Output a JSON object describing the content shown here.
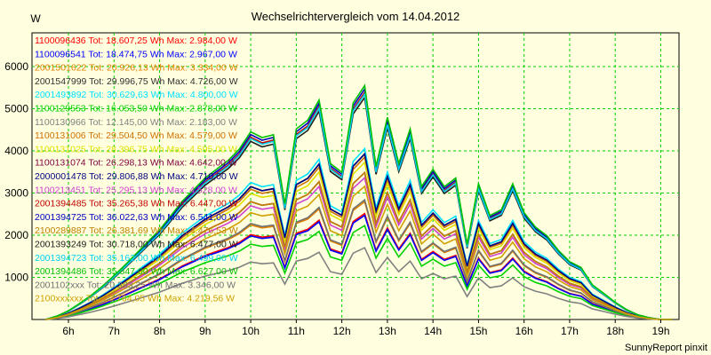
{
  "chart_data": {
    "type": "line",
    "title": "Wechselrichtervergleich vom 14.04.2012",
    "ylabel": "W",
    "xlabel": "",
    "footer": "SunnyReport pinxit",
    "ylim": [
      0,
      6800
    ],
    "xlim": [
      5.2,
      19.4
    ],
    "yticks": [
      1000,
      2000,
      3000,
      4000,
      5000,
      6000
    ],
    "xticks": [
      {
        "v": 6,
        "label": "6h"
      },
      {
        "v": 7,
        "label": "7h"
      },
      {
        "v": 8,
        "label": "8h"
      },
      {
        "v": 9,
        "label": "9h"
      },
      {
        "v": 10,
        "label": "10h"
      },
      {
        "v": 11,
        "label": "11h"
      },
      {
        "v": 12,
        "label": "12h"
      },
      {
        "v": 13,
        "label": "13h"
      },
      {
        "v": 14,
        "label": "14h"
      },
      {
        "v": 15,
        "label": "15h"
      },
      {
        "v": 16,
        "label": "16h"
      },
      {
        "v": 17,
        "label": "17h"
      },
      {
        "v": 18,
        "label": "18h"
      },
      {
        "v": 19,
        "label": "19h"
      }
    ],
    "grid": true,
    "legend_position": "top-left",
    "x": [
      5.5,
      5.75,
      6.0,
      6.25,
      6.5,
      6.75,
      7.0,
      7.25,
      7.5,
      7.75,
      8.0,
      8.25,
      8.5,
      8.75,
      9.0,
      9.25,
      9.5,
      9.75,
      10.0,
      10.25,
      10.5,
      10.75,
      11.0,
      11.25,
      11.5,
      11.75,
      12.0,
      12.25,
      12.5,
      12.75,
      13.0,
      13.25,
      13.5,
      13.75,
      14.0,
      14.25,
      14.5,
      14.75,
      15.0,
      15.25,
      15.5,
      15.75,
      16.0,
      16.25,
      16.5,
      16.75,
      17.0,
      17.25,
      17.5,
      17.75,
      18.0,
      18.25,
      18.5,
      18.75,
      19.0,
      19.25
    ],
    "series": [
      {
        "name": "1100096436",
        "legend": "1100096436 Tot: 18.607,25 Wh Max: 2.984,00 W",
        "color": "#ff0000",
        "scale": 0.62
      },
      {
        "name": "1100096541",
        "legend": "1100096541 Tot: 18.474,75 Wh Max: 2.967,00 W",
        "color": "#0000ff",
        "scale": 0.61
      },
      {
        "name": "2001501622",
        "legend": "2001501622 Tot: 20.926,13 Wh Max: 3.334,00 W",
        "color": "#e08000",
        "scale": 0.69
      },
      {
        "name": "2001547999",
        "legend": "2001547999 Tot: 29.996,75 Wh Max: 4.726,00 W",
        "color": "#303030",
        "scale": 0.97
      },
      {
        "name": "2001493892",
        "legend": "2001493892 Tot: 30.629,63 Wh Max: 4.800,00 W",
        "color": "#00e0ff",
        "scale": 1.0
      },
      {
        "name": "1100129553",
        "legend": "1100129553 Tot: 16.053,50 Wh Max: 2.878,00 W",
        "color": "#00d000",
        "scale": 0.55
      },
      {
        "name": "1100130966",
        "legend": "1100130966 Tot: 12.145,00 Wh Max: 2.183,00 W",
        "color": "#808080",
        "scale": 0.42
      },
      {
        "name": "1100131006",
        "legend": "1100131006 Tot: 29.504,50 Wh Max: 4.579,00 W",
        "color": "#d07000",
        "scale": 0.95
      },
      {
        "name": "1100131025",
        "legend": "1100131025 Tot: 28.396,75 Wh Max: 4.595,00 W",
        "color": "#e0e000",
        "scale": 0.92
      },
      {
        "name": "1100131074",
        "legend": "1100131074 Tot: 26.298,13 Wh Max: 4.642,00 W",
        "color": "#800040",
        "scale": 0.86
      },
      {
        "name": "2000001478",
        "legend": "2000001478 Tot: 29.806,88 Wh Max: 4.710,00 W",
        "color": "#000080",
        "scale": 0.97
      },
      {
        "name": "1100213451",
        "legend": "1100213451 Tot: 25.295,13 Wh Max: 4.528,00 W",
        "color": "#d040d0",
        "scale": 0.83
      },
      {
        "name": "2001394485",
        "legend": "2001394485 Tot: 35.265,38 Wh Max: 6.447,00 W",
        "color": "#c00000",
        "scale": 1.33
      },
      {
        "name": "2001394725",
        "legend": "2001394725 Tot: 36.022,63 Wh Max: 6.541,00 W",
        "color": "#0000c0",
        "scale": 1.35
      },
      {
        "name": "2100289887",
        "legend": "2100289887 Tot: 26.381,69 Wh Max: 4.476,53 W",
        "color": "#c08000",
        "scale": 0.86
      },
      {
        "name": "2001393249",
        "legend": "2001393249 Tot: 30.718,00 Wh Max: 6.477,00 W",
        "color": "#202020",
        "scale": 1.3
      },
      {
        "name": "2001394723",
        "legend": "2001394723 Tot: 35.162,00 Wh Max: 6.499,00 W",
        "color": "#00d0f0",
        "scale": 1.32
      },
      {
        "name": "2001394486",
        "legend": "2001394486 Tot: 35.847,00 Wh Max: 6.627,00 W",
        "color": "#00c000",
        "scale": 1.37
      },
      {
        "name": "2001102xxx",
        "legend": "2001102xxx Tot: 20.383,25 Wh Max: 3.346,00 W",
        "color": "#707070",
        "scale": 0.7
      },
      {
        "name": "2100xxxxxx",
        "legend": "2100xxxxxx Tot: 23.764,05 Wh Max: 4.219,56 W",
        "color": "#d0a000",
        "scale": 0.78
      }
    ],
    "profile": [
      0,
      60,
      150,
      280,
      420,
      580,
      760,
      950,
      1150,
      1350,
      1550,
      1800,
      2050,
      2250,
      2450,
      2600,
      2750,
      2950,
      3250,
      3150,
      3200,
      2000,
      3300,
      3450,
      3800,
      2700,
      2550,
      3750,
      4050,
      2650,
      3500,
      2700,
      3300,
      2300,
      2600,
      2300,
      2450,
      1300,
      2350,
      1800,
      1900,
      2350,
      1850,
      1600,
      1450,
      1200,
      1000,
      900,
      600,
      450,
      300,
      170,
      80,
      30,
      0,
      0
    ]
  }
}
